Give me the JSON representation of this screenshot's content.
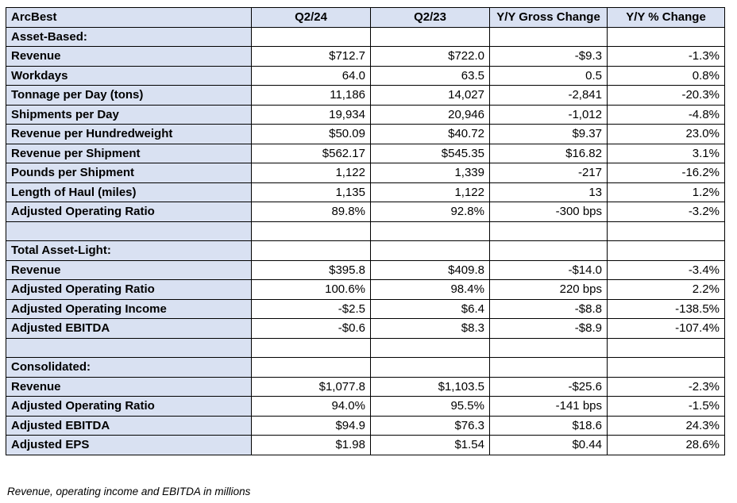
{
  "table": {
    "columns": [
      "ArcBest",
      "Q2/24",
      "Q2/23",
      "Y/Y Gross Change",
      "Y/Y % Change"
    ],
    "rows": [
      {
        "label": "Asset-Based:",
        "section": true,
        "values": [
          "",
          "",
          "",
          ""
        ]
      },
      {
        "label": "Revenue",
        "section": false,
        "values": [
          "$712.7",
          "$722.0",
          "-$9.3",
          "-1.3%"
        ]
      },
      {
        "label": "Workdays",
        "section": false,
        "values": [
          "64.0",
          "63.5",
          "0.5",
          "0.8%"
        ]
      },
      {
        "label": "Tonnage per Day (tons)",
        "section": false,
        "values": [
          "11,186",
          "14,027",
          "-2,841",
          "-20.3%"
        ]
      },
      {
        "label": "Shipments per Day",
        "section": false,
        "values": [
          "19,934",
          "20,946",
          "-1,012",
          "-4.8%"
        ]
      },
      {
        "label": "Revenue per Hundredweight",
        "section": false,
        "values": [
          "$50.09",
          "$40.72",
          "$9.37",
          "23.0%"
        ]
      },
      {
        "label": "Revenue per Shipment",
        "section": false,
        "values": [
          "$562.17",
          "$545.35",
          "$16.82",
          "3.1%"
        ]
      },
      {
        "label": "Pounds per Shipment",
        "section": false,
        "values": [
          "1,122",
          "1,339",
          "-217",
          "-16.2%"
        ]
      },
      {
        "label": "Length of Haul (miles)",
        "section": false,
        "values": [
          "1,135",
          "1,122",
          "13",
          "1.2%"
        ]
      },
      {
        "label": "Adjusted Operating Ratio",
        "section": false,
        "values": [
          "89.8%",
          "92.8%",
          "-300 bps",
          "-3.2%"
        ]
      },
      {
        "label": "",
        "section": false,
        "values": [
          "",
          "",
          "",
          ""
        ]
      },
      {
        "label": "Total Asset-Light:",
        "section": true,
        "values": [
          "",
          "",
          "",
          ""
        ]
      },
      {
        "label": "Revenue",
        "section": false,
        "values": [
          "$395.8",
          "$409.8",
          "-$14.0",
          "-3.4%"
        ]
      },
      {
        "label": "Adjusted Operating Ratio",
        "section": false,
        "values": [
          "100.6%",
          "98.4%",
          "220 bps",
          "2.2%"
        ]
      },
      {
        "label": "Adjusted Operating Income",
        "section": false,
        "values": [
          "-$2.5",
          "$6.4",
          "-$8.8",
          "-138.5%"
        ]
      },
      {
        "label": "Adjusted EBITDA",
        "section": false,
        "values": [
          "-$0.6",
          "$8.3",
          "-$8.9",
          "-107.4%"
        ]
      },
      {
        "label": "",
        "section": false,
        "values": [
          "",
          "",
          "",
          ""
        ]
      },
      {
        "label": "Consolidated:",
        "section": true,
        "values": [
          "",
          "",
          "",
          ""
        ]
      },
      {
        "label": "Revenue",
        "section": false,
        "values": [
          "$1,077.8",
          "$1,103.5",
          "-$25.6",
          "-2.3%"
        ]
      },
      {
        "label": "Adjusted Operating Ratio",
        "section": false,
        "values": [
          "94.0%",
          "95.5%",
          "-141 bps",
          "-1.5%"
        ]
      },
      {
        "label": "Adjusted EBITDA",
        "section": false,
        "values": [
          "$94.9",
          "$76.3",
          "$18.6",
          "24.3%"
        ]
      },
      {
        "label": "Adjusted EPS",
        "section": false,
        "values": [
          "$1.98",
          "$1.54",
          "$0.44",
          "28.6%"
        ]
      }
    ]
  },
  "footnote": "Revenue, operating income and EBITDA in millions",
  "colors": {
    "shaded_cell_bg": "#D9E1F2",
    "border": "#000000",
    "text": "#000000",
    "page_bg": "#FFFFFF"
  }
}
